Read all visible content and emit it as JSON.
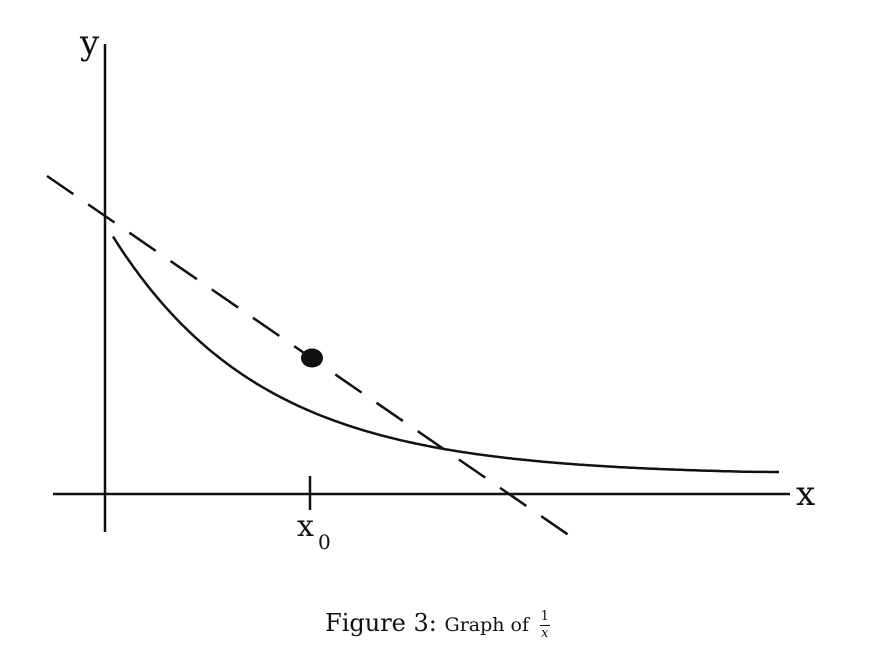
{
  "diagram": {
    "axis_labels": {
      "y": "y",
      "x": "x"
    },
    "tick_label": {
      "main": "x",
      "subscript": "0"
    },
    "curve": "y = 1/x",
    "tangent_line": "dashed tangent at x0",
    "stroke_color": "#111111"
  },
  "caption": {
    "prefix": "Figure 3:",
    "text": "Graph of",
    "fraction": {
      "numerator": "1",
      "denominator": "x"
    }
  }
}
